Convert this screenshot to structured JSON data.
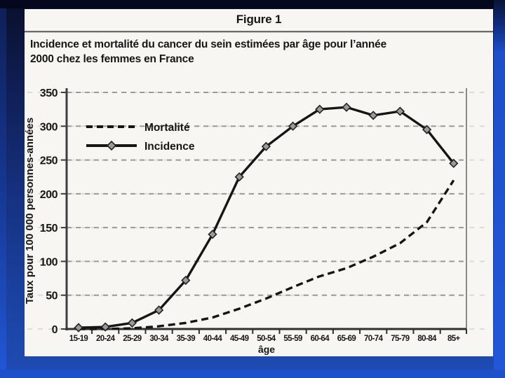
{
  "slide": {
    "accent_blue": "#2157d8",
    "background_dark": "#0a0f2c"
  },
  "figure": {
    "label": "Figure 1",
    "title_line1": "Incidence et mortalité du cancer du sein estimées par âge pour l’année",
    "title_line2": "2000 chez les femmes en France"
  },
  "chart_data": {
    "type": "line",
    "title": "Figure 1",
    "xlabel": "âge",
    "ylabel": "Taux pour 100 000 personnes-années",
    "ylim": [
      0,
      350
    ],
    "yticks": [
      0,
      50,
      100,
      150,
      200,
      250,
      300,
      350
    ],
    "grid": "horizontal-dashed",
    "legend_position": "upper-left-inside",
    "categories": [
      "15-19",
      "20-24",
      "25-29",
      "30-34",
      "35-39",
      "40-44",
      "45-49",
      "50-54",
      "55-59",
      "60-64",
      "65-69",
      "70-74",
      "75-79",
      "80-84",
      "85+"
    ],
    "series": [
      {
        "name": "Mortalité",
        "slug": "mortality",
        "style": "dashed",
        "marker": "none",
        "color": "#151515",
        "values": [
          0,
          0,
          1,
          4,
          9,
          17,
          30,
          45,
          62,
          78,
          90,
          107,
          127,
          158,
          220
        ]
      },
      {
        "name": "Incidence",
        "slug": "incidence",
        "style": "solid",
        "marker": "diamond",
        "color": "#151515",
        "marker_fill": "#9a9a9a",
        "values": [
          2,
          3,
          9,
          28,
          72,
          140,
          225,
          270,
          300,
          325,
          328,
          316,
          322,
          295,
          245
        ]
      }
    ]
  }
}
